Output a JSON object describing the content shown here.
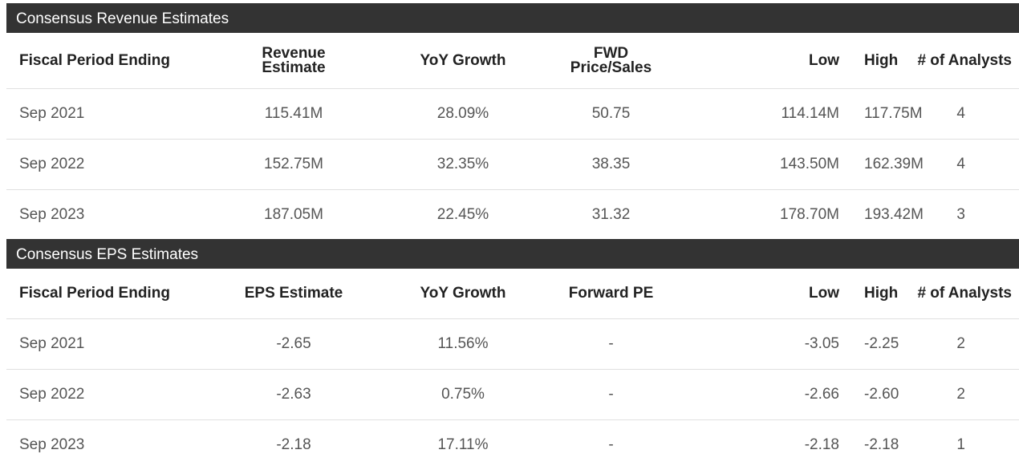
{
  "revenue_section": {
    "title": "Consensus Revenue Estimates",
    "headers": {
      "period": "Fiscal Period Ending",
      "estimate_line1": "Revenue",
      "estimate_line2": "Estimate",
      "yoy": "YoY Growth",
      "fwd_line1": "FWD",
      "fwd_line2": "Price/Sales",
      "low": "Low",
      "high": "High",
      "analysts": "# of Analysts"
    },
    "rows": [
      {
        "period": "Sep 2021",
        "estimate": "115.41M",
        "yoy": "28.09%",
        "fwd": "50.75",
        "low": "114.14M",
        "high": "117.75M",
        "analysts": "4"
      },
      {
        "period": "Sep 2022",
        "estimate": "152.75M",
        "yoy": "32.35%",
        "fwd": "38.35",
        "low": "143.50M",
        "high": "162.39M",
        "analysts": "4"
      },
      {
        "period": "Sep 2023",
        "estimate": "187.05M",
        "yoy": "22.45%",
        "fwd": "31.32",
        "low": "178.70M",
        "high": "193.42M",
        "analysts": "3"
      }
    ]
  },
  "eps_section": {
    "title": "Consensus EPS Estimates",
    "headers": {
      "period": "Fiscal Period Ending",
      "estimate": "EPS Estimate",
      "yoy": "YoY Growth",
      "fwd": "Forward PE",
      "low": "Low",
      "high": "High",
      "analysts": "# of Analysts"
    },
    "rows": [
      {
        "period": "Sep 2021",
        "estimate": "-2.65",
        "yoy": "11.56%",
        "fwd": "-",
        "low": "-3.05",
        "high": "-2.25",
        "analysts": "2"
      },
      {
        "period": "Sep 2022",
        "estimate": "-2.63",
        "yoy": "0.75%",
        "fwd": "-",
        "low": "-2.66",
        "high": "-2.60",
        "analysts": "2"
      },
      {
        "period": "Sep 2023",
        "estimate": "-2.18",
        "yoy": "17.11%",
        "fwd": "-",
        "low": "-2.18",
        "high": "-2.18",
        "analysts": "1"
      }
    ]
  }
}
